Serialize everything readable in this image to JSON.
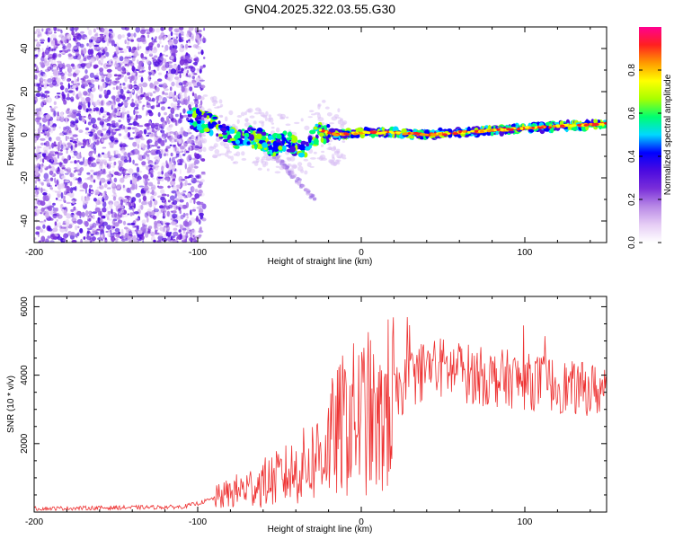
{
  "title": "GN04.2025.322.03.55.G30",
  "chart_data": [
    {
      "type": "heatmap",
      "xlabel": "Height of straight line (km)",
      "ylabel": "Frequency (Hz)",
      "xlim": [
        -200,
        150
      ],
      "ylim": [
        -50,
        50
      ],
      "x_ticks": [
        -200,
        -100,
        0,
        100
      ],
      "y_ticks": [
        -40,
        -20,
        0,
        20,
        40
      ],
      "ridge": {
        "x": [
          -105,
          -95,
          -85,
          -75,
          -65,
          -55,
          -45,
          -35,
          -25,
          -15,
          0,
          20,
          40,
          60,
          80,
          100,
          120,
          150
        ],
        "y": [
          8,
          6,
          2,
          -2,
          -1,
          -5,
          -3,
          -6,
          2,
          0,
          1,
          1,
          0,
          1,
          2,
          3,
          4,
          5
        ]
      },
      "noise_region": [
        -200,
        -100
      ],
      "colorbar": {
        "label": "Normalized spectral amplitude",
        "ticks": [
          0.0,
          0.2,
          0.4,
          0.6,
          0.8
        ],
        "range": [
          0,
          1
        ],
        "colors": [
          "#ffffff",
          "#e6cdf5",
          "#b98ae6",
          "#7a2fd9",
          "#4b0ae0",
          "#0000ff",
          "#00d8ff",
          "#00ff70",
          "#a8ff00",
          "#ffff00",
          "#ff9900",
          "#ff2020",
          "#ff0090"
        ]
      }
    },
    {
      "type": "line",
      "xlabel": "Height of straight line (km)",
      "ylabel": "SNR (10 * v/v)",
      "xlim": [
        -200,
        150
      ],
      "ylim": [
        0,
        6300
      ],
      "x_ticks": [
        -200,
        -100,
        0,
        100
      ],
      "y_ticks": [
        2000,
        4000,
        6000
      ],
      "color": "#ee3333",
      "envelope": {
        "x": [
          -200,
          -110,
          -100,
          -90,
          -80,
          -70,
          -60,
          -50,
          -40,
          -30,
          -20,
          -15,
          -10,
          -5,
          0,
          5,
          10,
          15,
          20,
          25,
          30,
          40,
          50,
          60,
          70,
          80,
          90,
          100,
          110,
          120,
          130,
          140,
          150
        ],
        "y": [
          100,
          150,
          250,
          400,
          550,
          700,
          850,
          1000,
          1200,
          1500,
          2000,
          2300,
          2600,
          2700,
          2800,
          2900,
          2300,
          3000,
          3400,
          3600,
          3900,
          4200,
          4200,
          4100,
          4000,
          3900,
          3900,
          3800,
          3800,
          3700,
          3600,
          3600,
          3500
        ]
      }
    }
  ]
}
